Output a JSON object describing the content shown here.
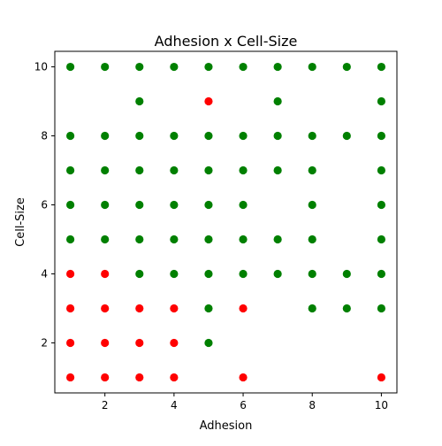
{
  "chart_data": {
    "type": "scatter",
    "title": "Adhesion x Cell-Size",
    "xlabel": "Adhesion",
    "ylabel": "Cell-Size",
    "xlim": [
      0.55,
      10.45
    ],
    "ylim": [
      0.55,
      10.45
    ],
    "xticks": [
      2,
      4,
      6,
      8,
      10
    ],
    "yticks": [
      2,
      4,
      6,
      8,
      10
    ],
    "grid": false,
    "colors": {
      "green": "#008000",
      "red": "#ff0000"
    },
    "series": [
      {
        "color": "#008000",
        "points": [
          [
            1,
            10
          ],
          [
            2,
            10
          ],
          [
            3,
            10
          ],
          [
            4,
            10
          ],
          [
            5,
            10
          ],
          [
            6,
            10
          ],
          [
            7,
            10
          ],
          [
            8,
            10
          ],
          [
            9,
            10
          ],
          [
            10,
            10
          ],
          [
            3,
            9
          ],
          [
            7,
            9
          ],
          [
            10,
            9
          ],
          [
            1,
            8
          ],
          [
            2,
            8
          ],
          [
            3,
            8
          ],
          [
            4,
            8
          ],
          [
            5,
            8
          ],
          [
            6,
            8
          ],
          [
            7,
            8
          ],
          [
            8,
            8
          ],
          [
            9,
            8
          ],
          [
            10,
            8
          ],
          [
            1,
            7
          ],
          [
            2,
            7
          ],
          [
            3,
            7
          ],
          [
            4,
            7
          ],
          [
            5,
            7
          ],
          [
            6,
            7
          ],
          [
            7,
            7
          ],
          [
            8,
            7
          ],
          [
            10,
            7
          ],
          [
            1,
            6
          ],
          [
            2,
            6
          ],
          [
            3,
            6
          ],
          [
            4,
            6
          ],
          [
            5,
            6
          ],
          [
            6,
            6
          ],
          [
            8,
            6
          ],
          [
            10,
            6
          ],
          [
            1,
            5
          ],
          [
            2,
            5
          ],
          [
            3,
            5
          ],
          [
            4,
            5
          ],
          [
            5,
            5
          ],
          [
            6,
            5
          ],
          [
            7,
            5
          ],
          [
            8,
            5
          ],
          [
            10,
            5
          ],
          [
            3,
            4
          ],
          [
            4,
            4
          ],
          [
            5,
            4
          ],
          [
            6,
            4
          ],
          [
            7,
            4
          ],
          [
            8,
            4
          ],
          [
            9,
            4
          ],
          [
            10,
            4
          ],
          [
            5,
            3
          ],
          [
            8,
            3
          ],
          [
            9,
            3
          ],
          [
            10,
            3
          ],
          [
            5,
            2
          ]
        ]
      },
      {
        "color": "#ff0000",
        "points": [
          [
            5,
            9
          ],
          [
            1,
            4
          ],
          [
            2,
            4
          ],
          [
            1,
            3
          ],
          [
            2,
            3
          ],
          [
            3,
            3
          ],
          [
            4,
            3
          ],
          [
            6,
            3
          ],
          [
            1,
            2
          ],
          [
            2,
            2
          ],
          [
            3,
            2
          ],
          [
            4,
            2
          ],
          [
            1,
            1
          ],
          [
            2,
            1
          ],
          [
            3,
            1
          ],
          [
            4,
            1
          ],
          [
            6,
            1
          ],
          [
            10,
            1
          ]
        ]
      }
    ]
  }
}
